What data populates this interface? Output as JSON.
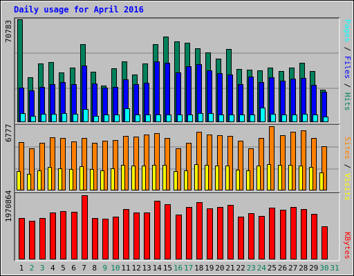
{
  "chart_data": [
    {
      "type": "bar",
      "panel": "hits-files-pages",
      "title": "Daily usage for April 2016",
      "categories": [
        "1",
        "2",
        "3",
        "4",
        "5",
        "6",
        "7",
        "8",
        "9",
        "10",
        "11",
        "12",
        "13",
        "14",
        "15",
        "16",
        "17",
        "18",
        "19",
        "20",
        "21",
        "22",
        "23",
        "24",
        "25",
        "26",
        "27",
        "28",
        "29",
        "30",
        "31"
      ],
      "weekend_days": [
        "2",
        "3",
        "9",
        "10",
        "16",
        "17",
        "23",
        "24",
        "30",
        "31"
      ],
      "ylim": [
        0,
        70783
      ],
      "ymax_label": "70783",
      "series": [
        {
          "name": "Hits",
          "color": "#00805c",
          "values": [
            70783,
            30500,
            40300,
            41100,
            34000,
            37400,
            53700,
            34600,
            24700,
            36900,
            41800,
            32300,
            40200,
            53600,
            58800,
            55500,
            54400,
            50900,
            47900,
            43600,
            50100,
            36300,
            35800,
            35200,
            37200,
            34900,
            37200,
            40600,
            35000,
            21900,
            null
          ]
        },
        {
          "name": "Files",
          "color": "#0000ff",
          "values": [
            23500,
            21700,
            24000,
            25800,
            27400,
            25600,
            38800,
            26300,
            23200,
            23700,
            29400,
            25700,
            26700,
            41400,
            40500,
            33800,
            38400,
            39600,
            35500,
            33700,
            32400,
            25600,
            31100,
            27400,
            30600,
            28100,
            29500,
            30000,
            25400,
            20700,
            null
          ]
        },
        {
          "name": "Pages",
          "color": "#00ffff",
          "values": [
            5900,
            3900,
            5300,
            5300,
            5600,
            5200,
            8400,
            3600,
            4800,
            4700,
            9300,
            4900,
            4800,
            4900,
            4900,
            4600,
            5000,
            5800,
            5900,
            4700,
            4700,
            4700,
            4600,
            9400,
            5300,
            4900,
            4700,
            5100,
            4600,
            3500,
            null
          ]
        }
      ]
    },
    {
      "type": "bar",
      "panel": "visits-sites",
      "categories": [
        "1",
        "2",
        "3",
        "4",
        "5",
        "6",
        "7",
        "8",
        "9",
        "10",
        "11",
        "12",
        "13",
        "14",
        "15",
        "16",
        "17",
        "18",
        "19",
        "20",
        "21",
        "22",
        "23",
        "24",
        "25",
        "26",
        "27",
        "28",
        "29",
        "30",
        "31"
      ],
      "ylim": [
        0,
        6777
      ],
      "ymax_label": "6777",
      "series": [
        {
          "name": "Visits",
          "color": "#ff8000",
          "values": [
            5097,
            4386,
            5021,
            5626,
            5550,
            5172,
            5513,
            5021,
            5248,
            5324,
            5777,
            5701,
            5929,
            6004,
            5550,
            4386,
            5000,
            6171,
            5929,
            5853,
            5777,
            5248,
            4386,
            5550,
            6777,
            5853,
            6171,
            6324,
            5550,
            4628,
            null
          ]
        },
        {
          "name": "Sites",
          "color": "#ffff00",
          "values": [
            2000,
            1680,
            2077,
            2400,
            2290,
            2240,
            2480,
            2224,
            2084,
            2257,
            2650,
            2588,
            2614,
            2650,
            2640,
            2010,
            2075,
            2720,
            2665,
            2589,
            2591,
            2145,
            2075,
            2588,
            2695,
            2640,
            2680,
            2556,
            2415,
            1814,
            null
          ]
        }
      ]
    },
    {
      "type": "bar",
      "panel": "kbytes",
      "categories": [
        "1",
        "2",
        "3",
        "4",
        "5",
        "6",
        "7",
        "8",
        "9",
        "10",
        "11",
        "12",
        "13",
        "14",
        "15",
        "16",
        "17",
        "18",
        "19",
        "20",
        "21",
        "22",
        "23",
        "24",
        "25",
        "26",
        "27",
        "28",
        "29",
        "30",
        "31"
      ],
      "ylim": [
        0,
        1970864
      ],
      "ymax_label": "1970864",
      "series": [
        {
          "name": "KBytes",
          "color": "#ff0000",
          "values": [
            1264000,
            1175000,
            1264000,
            1431000,
            1484000,
            1458000,
            1970864,
            1269000,
            1249000,
            1300000,
            1543000,
            1436000,
            1445000,
            1800000,
            1689000,
            1377000,
            1609000,
            1764000,
            1554000,
            1613000,
            1661000,
            1315000,
            1421000,
            1334000,
            1577000,
            1524000,
            1599000,
            1548000,
            1386000,
            1000000,
            null
          ]
        }
      ]
    }
  ]
}
